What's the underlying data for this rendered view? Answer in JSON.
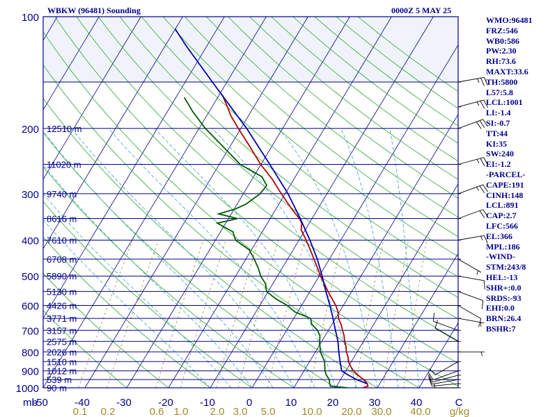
{
  "header": {
    "title": "WBKW (96481) Sounding",
    "time": "0000Z  5 MAY 25"
  },
  "indices": [
    "WMO:96481",
    "FRZ:546",
    "WB0:586",
    "PW:2.30",
    "RH:73.6",
    "MAXT:33.6",
    "TH:5800",
    "L57:5.8",
    "LCL:1001",
    "LI:-1.4",
    "SI:-0.7",
    "TT:44",
    "KI:35",
    "SW:240",
    "EI:-1.2",
    "-PARCEL-",
    "CAPE:191",
    "CINH:148",
    "LCL:891",
    "CAP:2.7",
    "LFC:566",
    "EL:366",
    "MPL:186",
    "-WIND-",
    "STM:243/8",
    "HEL:-13",
    "SHR+:0.0",
    "SRDS:-93",
    "EHI:0.0",
    "BRN:26.4",
    "BSHR:7"
  ],
  "chart_data": {
    "type": "line",
    "title": "WBKW (96481) Sounding",
    "subtitle": "0000Z  5 MAY 25",
    "xlabel": "C",
    "ylabel": "mb",
    "x_range": [
      -50,
      50
    ],
    "y_range_mb": [
      1000,
      100
    ],
    "log_pressure_axis": true,
    "skew_t": true,
    "pressure_ticks": [
      {
        "p": 100,
        "label": "100"
      },
      {
        "p": 200,
        "label": "200"
      },
      {
        "p": 300,
        "label": "300"
      },
      {
        "p": 400,
        "label": "400"
      },
      {
        "p": 500,
        "label": "500"
      },
      {
        "p": 600,
        "label": "600"
      },
      {
        "p": 700,
        "label": "700"
      },
      {
        "p": 800,
        "label": "800"
      },
      {
        "p": 900,
        "label": "900"
      },
      {
        "p": 1000,
        "label": "1000"
      }
    ],
    "temperature_ticks": [
      {
        "t": -50,
        "label": "-50"
      },
      {
        "t": -40,
        "label": "-40"
      },
      {
        "t": -30,
        "label": "-30"
      },
      {
        "t": -20,
        "label": "-20"
      },
      {
        "t": -10,
        "label": "-10"
      },
      {
        "t": 0,
        "label": "0"
      },
      {
        "t": 10,
        "label": "10"
      },
      {
        "t": 20,
        "label": "20"
      },
      {
        "t": 30,
        "label": "30"
      },
      {
        "t": 40,
        "label": "40"
      }
    ],
    "height_levels": [
      {
        "p": 150,
        "label": ""
      },
      {
        "p": 200,
        "label": "12510 m"
      },
      {
        "p": 250,
        "label": "11020 m"
      },
      {
        "p": 300,
        "label": "9740 m"
      },
      {
        "p": 350,
        "label": "8616 m"
      },
      {
        "p": 400,
        "label": "7610 m"
      },
      {
        "p": 450,
        "label": "6708 m"
      },
      {
        "p": 500,
        "label": "5890 m"
      },
      {
        "p": 550,
        "label": "5130 m"
      },
      {
        "p": 600,
        "label": "4426 m"
      },
      {
        "p": 650,
        "label": "3771 m"
      },
      {
        "p": 700,
        "label": "3157 m"
      },
      {
        "p": 750,
        "label": "2575 m"
      },
      {
        "p": 800,
        "label": "2026 m"
      },
      {
        "p": 850,
        "label": "1510 m"
      },
      {
        "p": 900,
        "label": "1012 m"
      },
      {
        "p": 950,
        "label": "539 m"
      },
      {
        "p": 1000,
        "label": "90 m"
      }
    ],
    "mixing_ratio_labels": [
      "0.1",
      "0.2",
      "0.6",
      "1.0",
      "2.0",
      "3.0",
      "5.0",
      "10.0",
      "20.0",
      "30.0",
      "40.0"
    ],
    "mixing_ratio_unit": "g/kg",
    "colors": {
      "frame": "#00008b",
      "isobar": "#00008b",
      "isotherm": "#00008b",
      "dry_adiabat": "#2ca52c",
      "moist_adiabat": "#3aa0c8",
      "mixing_ratio": "#9a8a3a",
      "temperature": "#b00000",
      "dewpoint": "#005a00",
      "parcel": "#0000b0",
      "wind_barbs": "#000000"
    },
    "series": [
      {
        "name": "Temperature",
        "points": [
          [
            1000,
            26.5
          ],
          [
            990,
            27.5
          ],
          [
            975,
            27.0
          ],
          [
            950,
            25.5
          ],
          [
            925,
            23.6
          ],
          [
            900,
            21.8
          ],
          [
            875,
            20.5
          ],
          [
            850,
            19.3
          ],
          [
            825,
            18.5
          ],
          [
            800,
            17.4
          ],
          [
            775,
            16.6
          ],
          [
            750,
            15.5
          ],
          [
            725,
            14.6
          ],
          [
            700,
            13.4
          ],
          [
            675,
            12.2
          ],
          [
            650,
            10.7
          ],
          [
            625,
            9.7
          ],
          [
            600,
            8.2
          ],
          [
            575,
            6.3
          ],
          [
            550,
            4.3
          ],
          [
            525,
            2.4
          ],
          [
            500,
            0.3
          ],
          [
            475,
            -1.6
          ],
          [
            450,
            -3.7
          ],
          [
            425,
            -5.9
          ],
          [
            400,
            -8.3
          ],
          [
            375,
            -11.0
          ],
          [
            360,
            -11.8
          ],
          [
            350,
            -13.0
          ],
          [
            330,
            -16.2
          ],
          [
            300,
            -20.9
          ],
          [
            275,
            -25.0
          ],
          [
            250,
            -30.1
          ],
          [
            225,
            -35.0
          ],
          [
            200,
            -40.6
          ],
          [
            185,
            -44.2
          ],
          [
            175,
            -46.3
          ],
          [
            162,
            -49.4
          ]
        ]
      },
      {
        "name": "Dewpoint",
        "points": [
          [
            1000,
            23.0
          ],
          [
            990,
            18.5
          ],
          [
            975,
            18.0
          ],
          [
            950,
            17.3
          ],
          [
            925,
            16.0
          ],
          [
            900,
            15.0
          ],
          [
            850,
            13.6
          ],
          [
            800,
            11.2
          ],
          [
            750,
            9.5
          ],
          [
            725,
            8.8
          ],
          [
            700,
            7.4
          ],
          [
            675,
            5.2
          ],
          [
            650,
            4.0
          ],
          [
            625,
            -0.6
          ],
          [
            600,
            -3.4
          ],
          [
            575,
            -7.2
          ],
          [
            550,
            -10.4
          ],
          [
            525,
            -11.7
          ],
          [
            500,
            -14.0
          ],
          [
            475,
            -15.8
          ],
          [
            450,
            -18.0
          ],
          [
            425,
            -20.5
          ],
          [
            400,
            -25.2
          ],
          [
            380,
            -27.0
          ],
          [
            360,
            -32.0
          ],
          [
            350,
            -27.8
          ],
          [
            340,
            -33.0
          ],
          [
            330,
            -29.8
          ],
          [
            320,
            -27.9
          ],
          [
            300,
            -26.0
          ],
          [
            285,
            -25.6
          ],
          [
            270,
            -28.0
          ],
          [
            250,
            -35.0
          ],
          [
            230,
            -40.0
          ],
          [
            200,
            -48.5
          ],
          [
            180,
            -54.0
          ],
          [
            165,
            -58.0
          ]
        ]
      },
      {
        "name": "Parcel",
        "points": [
          [
            975,
            27.0
          ],
          [
            950,
            23.8
          ],
          [
            925,
            21.3
          ],
          [
            900,
            19.0
          ],
          [
            850,
            17.3
          ],
          [
            800,
            15.6
          ],
          [
            750,
            13.9
          ],
          [
            700,
            11.7
          ],
          [
            650,
            9.4
          ],
          [
            600,
            6.8
          ],
          [
            550,
            3.8
          ],
          [
            500,
            0.7
          ],
          [
            450,
            -2.9
          ],
          [
            400,
            -7.4
          ],
          [
            350,
            -12.8
          ],
          [
            300,
            -19.3
          ],
          [
            250,
            -27.9
          ],
          [
            200,
            -38.6
          ],
          [
            150,
            -53.5
          ],
          [
            120,
            -64.9
          ],
          [
            108,
            -70.0
          ]
        ]
      }
    ],
    "wind_barbs": [
      {
        "p": 1000,
        "dir": 270,
        "spd": 5
      },
      {
        "p": 975,
        "dir": 265,
        "spd": 10
      },
      {
        "p": 950,
        "dir": 260,
        "spd": 10
      },
      {
        "p": 925,
        "dir": 255,
        "spd": 10
      },
      {
        "p": 900,
        "dir": 250,
        "spd": 10
      },
      {
        "p": 850,
        "dir": 240,
        "spd": 10
      },
      {
        "p": 800,
        "dir": 90,
        "spd": 5
      },
      {
        "p": 750,
        "dir": 300,
        "spd": 10
      },
      {
        "p": 700,
        "dir": 290,
        "spd": 10
      },
      {
        "p": 650,
        "dir": 100,
        "spd": 5
      },
      {
        "p": 600,
        "dir": 120,
        "spd": 10
      },
      {
        "p": 550,
        "dir": 110,
        "spd": 10
      },
      {
        "p": 500,
        "dir": 100,
        "spd": 10
      },
      {
        "p": 450,
        "dir": 120,
        "spd": 5
      },
      {
        "p": 400,
        "dir": 80,
        "spd": 15
      },
      {
        "p": 350,
        "dir": 70,
        "spd": 20
      },
      {
        "p": 300,
        "dir": 70,
        "spd": 25
      },
      {
        "p": 250,
        "dir": 75,
        "spd": 25
      },
      {
        "p": 200,
        "dir": 70,
        "spd": 30
      },
      {
        "p": 175,
        "dir": 75,
        "spd": 25
      },
      {
        "p": 150,
        "dir": 80,
        "spd": 25
      }
    ]
  }
}
